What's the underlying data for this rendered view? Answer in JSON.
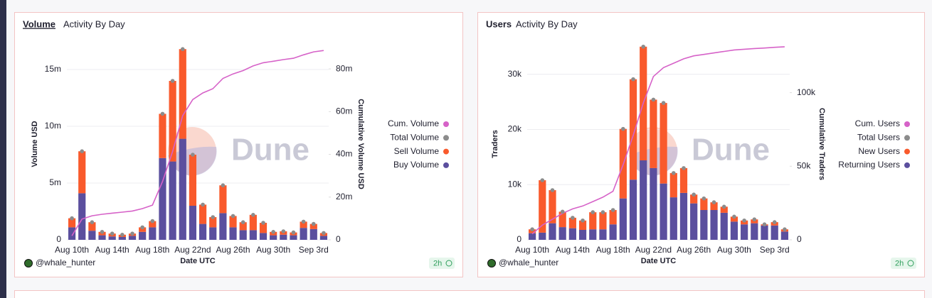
{
  "chart_data": [
    {
      "type": "bar",
      "title": "Volume",
      "subtitle": "Activity By Day",
      "ylabel": "Volume USD",
      "y2label": "Cumulative Volume USD",
      "xlabel": "Date UTC",
      "author": "@whale_hunter",
      "age": "2h",
      "watermark": "Dune",
      "categories": [
        "Aug 10th",
        null,
        null,
        null,
        "Aug 14th",
        null,
        null,
        null,
        "Aug 18th",
        null,
        null,
        null,
        "Aug 22nd",
        null,
        null,
        null,
        "Aug 26th",
        null,
        null,
        null,
        "Aug 30th",
        null,
        null,
        null,
        "Sep 3rd",
        null
      ],
      "series": [
        {
          "name": "Cum. Volume",
          "type": "line",
          "axis": "y2",
          "color": "#d662c8",
          "values": [
            1900000,
            9700000,
            11250000,
            11950000,
            12500000,
            12950000,
            13500000,
            14600000,
            16250000,
            27350000,
            41350000,
            58150000,
            65650000,
            68750000,
            70750000,
            75550000,
            77650000,
            79200000,
            81400000,
            82900000,
            83600000,
            84350000,
            85000000,
            86600000,
            88000000,
            88600000
          ]
        },
        {
          "name": "Total Volume",
          "type": "scatter",
          "color": "#8c8c8c",
          "values": [
            1900000,
            7800000,
            1550000,
            700000,
            550000,
            450000,
            550000,
            1100000,
            1650000,
            11100000,
            14000000,
            16800000,
            7500000,
            3100000,
            2000000,
            4800000,
            2100000,
            1550000,
            2200000,
            1500000,
            700000,
            750000,
            650000,
            1600000,
            1400000,
            600000
          ]
        },
        {
          "name": "Sell Volume",
          "type": "bar",
          "color": "#f95a2c",
          "values": [
            800000,
            3700000,
            750000,
            300000,
            250000,
            200000,
            200000,
            400000,
            550000,
            3900000,
            7100000,
            7900000,
            4500000,
            1700000,
            900000,
            2450000,
            1000000,
            700000,
            1350000,
            900000,
            300000,
            300000,
            250000,
            550000,
            450000,
            250000
          ]
        },
        {
          "name": "Buy Volume",
          "type": "bar",
          "color": "#5b4f9e",
          "values": [
            1100000,
            4100000,
            800000,
            400000,
            300000,
            250000,
            350000,
            700000,
            1100000,
            7200000,
            6900000,
            8900000,
            3000000,
            1400000,
            1100000,
            2350000,
            1100000,
            850000,
            850000,
            600000,
            400000,
            450000,
            400000,
            1050000,
            950000,
            350000
          ]
        }
      ],
      "ylim": [
        0,
        17500000
      ],
      "yticks": [
        0,
        {
          "value": 5000000,
          "label": "5m"
        },
        {
          "value": 10000000,
          "label": "10m"
        },
        {
          "value": 15000000,
          "label": "15m"
        }
      ],
      "y2lim": [
        0,
        93000000
      ],
      "y2ticks": [
        0,
        {
          "value": 20000000,
          "label": "20m"
        },
        {
          "value": 40000000,
          "label": "40m"
        },
        {
          "value": 60000000,
          "label": "60m"
        },
        {
          "value": 80000000,
          "label": "80m"
        }
      ],
      "grid": true,
      "legend": "right"
    },
    {
      "type": "bar",
      "title": "Users",
      "subtitle": "Activity By Day",
      "ylabel": "Traders",
      "y2label": "Cumulative Traders",
      "xlabel": "Date UTC",
      "author": "@whale_hunter",
      "age": "2h",
      "watermark": "Dune",
      "categories": [
        "Aug 10th",
        null,
        null,
        null,
        "Aug 14th",
        null,
        null,
        null,
        "Aug 18th",
        null,
        null,
        null,
        "Aug 22nd",
        null,
        null,
        null,
        "Aug 26th",
        null,
        null,
        null,
        "Aug 30th",
        null,
        null,
        null,
        "Sep 3rd",
        null
      ],
      "series": [
        {
          "name": "Cum. Users",
          "type": "line",
          "axis": "y2",
          "color": "#d662c8",
          "values": [
            4000,
            10000,
            14000,
            18000,
            21000,
            23000,
            26000,
            29000,
            33000,
            51000,
            71000,
            93000,
            111000,
            117000,
            120000,
            123000,
            125000,
            126000,
            127000,
            128000,
            129000,
            129500,
            130000,
            130300,
            130800,
            131200
          ]
        },
        {
          "name": "Total Users",
          "type": "scatter",
          "color": "#8c8c8c",
          "values": [
            1900,
            10800,
            9000,
            5100,
            4000,
            3500,
            5000,
            5000,
            5400,
            20100,
            29100,
            35000,
            25400,
            24800,
            12100,
            13000,
            8200,
            7500,
            6800,
            6000,
            4200,
            3500,
            3700,
            2800,
            3200,
            1900
          ]
        },
        {
          "name": "New Users",
          "type": "bar",
          "color": "#f95a2c",
          "values": [
            700,
            9500,
            6000,
            2800,
            1900,
            1700,
            3100,
            3100,
            2600,
            12600,
            18200,
            20600,
            12400,
            14600,
            4400,
            4500,
            1600,
            2100,
            1400,
            1100,
            900,
            700,
            700,
            200,
            600,
            400
          ]
        },
        {
          "name": "Returning Users",
          "type": "bar",
          "color": "#5b4f9e",
          "values": [
            1200,
            1300,
            3000,
            2300,
            2100,
            1800,
            1900,
            1900,
            2800,
            7500,
            10900,
            14400,
            13000,
            10200,
            7700,
            8500,
            6600,
            5400,
            5400,
            4900,
            3300,
            2800,
            3000,
            2600,
            2600,
            1500
          ]
        }
      ],
      "ylim": [
        0,
        36000
      ],
      "yticks": [
        0,
        {
          "value": 10000,
          "label": "10k"
        },
        {
          "value": 20000,
          "label": "20k"
        },
        {
          "value": 30000,
          "label": "30k"
        }
      ],
      "y2lim": [
        0,
        135000
      ],
      "y2ticks": [
        0,
        {
          "value": 50000,
          "label": "50k"
        },
        {
          "value": 100000,
          "label": "100k"
        }
      ],
      "grid": true,
      "legend": "right"
    }
  ]
}
